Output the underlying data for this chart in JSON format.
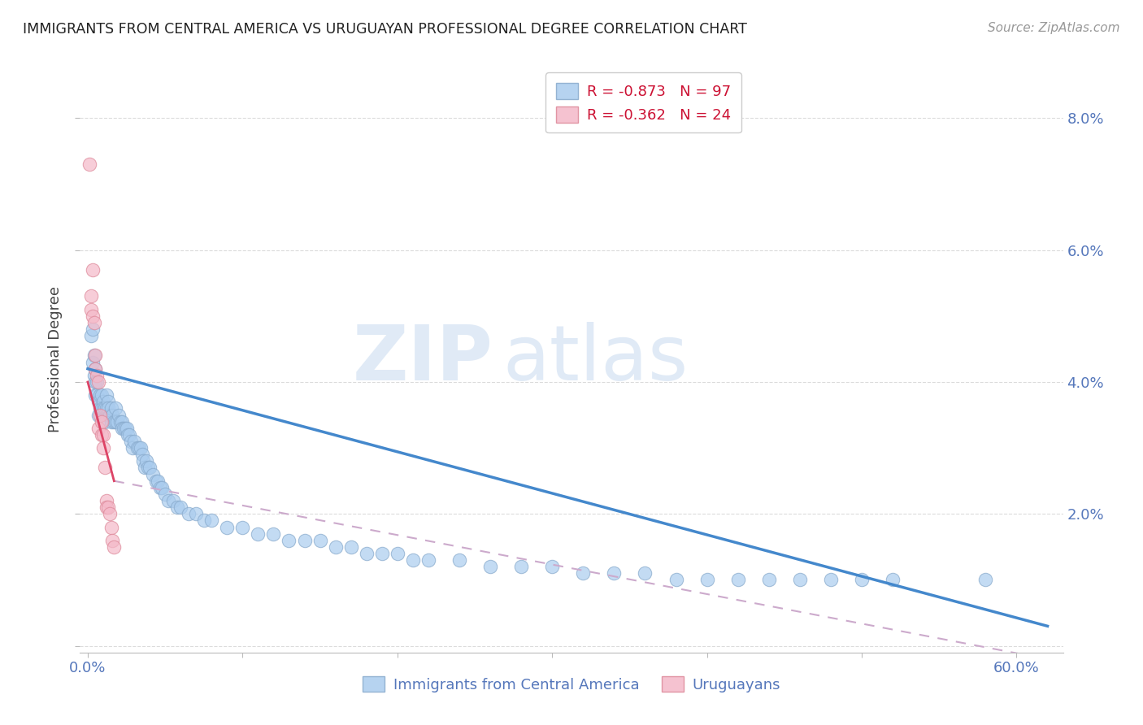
{
  "title": "IMMIGRANTS FROM CENTRAL AMERICA VS URUGUAYAN PROFESSIONAL DEGREE CORRELATION CHART",
  "source": "Source: ZipAtlas.com",
  "xlabel_blue": "Immigrants from Central America",
  "xlabel_pink": "Uruguayans",
  "ylabel": "Professional Degree",
  "watermark_zip": "ZIP",
  "watermark_atlas": "atlas",
  "legend_blue_r": "R = -0.873",
  "legend_blue_n": "N = 97",
  "legend_pink_r": "R = -0.362",
  "legend_pink_n": "N = 24",
  "x_ticks": [
    0.0,
    0.1,
    0.2,
    0.3,
    0.4,
    0.5,
    0.6
  ],
  "x_tick_labels": [
    "0.0%",
    "",
    "",
    "",
    "",
    "",
    "60.0%"
  ],
  "y_ticks": [
    0.0,
    0.02,
    0.04,
    0.06,
    0.08
  ],
  "y_tick_labels_right": [
    "",
    "2.0%",
    "4.0%",
    "6.0%",
    "8.0%"
  ],
  "xlim": [
    -0.005,
    0.63
  ],
  "ylim": [
    -0.001,
    0.088
  ],
  "background_color": "#ffffff",
  "grid_color": "#cccccc",
  "blue_color": "#aaccee",
  "blue_edge_color": "#88aacc",
  "pink_color": "#f4b8c8",
  "pink_edge_color": "#dd8899",
  "axis_tick_color": "#5577bb",
  "ylabel_color": "#444444",
  "title_color": "#222222",
  "source_color": "#999999",
  "blue_line_color": "#4488cc",
  "pink_line_color": "#dd4466",
  "pink_dash_color": "#ccaacc",
  "blue_dots": [
    [
      0.002,
      0.047
    ],
    [
      0.003,
      0.048
    ],
    [
      0.003,
      0.043
    ],
    [
      0.004,
      0.044
    ],
    [
      0.004,
      0.041
    ],
    [
      0.005,
      0.042
    ],
    [
      0.005,
      0.04
    ],
    [
      0.005,
      0.038
    ],
    [
      0.006,
      0.04
    ],
    [
      0.006,
      0.038
    ],
    [
      0.007,
      0.037
    ],
    [
      0.007,
      0.035
    ],
    [
      0.008,
      0.038
    ],
    [
      0.008,
      0.036
    ],
    [
      0.009,
      0.038
    ],
    [
      0.009,
      0.036
    ],
    [
      0.01,
      0.037
    ],
    [
      0.01,
      0.036
    ],
    [
      0.011,
      0.036
    ],
    [
      0.011,
      0.034
    ],
    [
      0.012,
      0.038
    ],
    [
      0.012,
      0.036
    ],
    [
      0.013,
      0.037
    ],
    [
      0.013,
      0.036
    ],
    [
      0.014,
      0.035
    ],
    [
      0.015,
      0.036
    ],
    [
      0.015,
      0.034
    ],
    [
      0.016,
      0.035
    ],
    [
      0.017,
      0.034
    ],
    [
      0.018,
      0.036
    ],
    [
      0.018,
      0.034
    ],
    [
      0.019,
      0.034
    ],
    [
      0.02,
      0.035
    ],
    [
      0.021,
      0.034
    ],
    [
      0.022,
      0.034
    ],
    [
      0.022,
      0.033
    ],
    [
      0.023,
      0.033
    ],
    [
      0.024,
      0.033
    ],
    [
      0.025,
      0.033
    ],
    [
      0.026,
      0.032
    ],
    [
      0.027,
      0.032
    ],
    [
      0.028,
      0.031
    ],
    [
      0.029,
      0.03
    ],
    [
      0.03,
      0.031
    ],
    [
      0.032,
      0.03
    ],
    [
      0.033,
      0.03
    ],
    [
      0.034,
      0.03
    ],
    [
      0.035,
      0.029
    ],
    [
      0.036,
      0.028
    ],
    [
      0.037,
      0.027
    ],
    [
      0.038,
      0.028
    ],
    [
      0.039,
      0.027
    ],
    [
      0.04,
      0.027
    ],
    [
      0.042,
      0.026
    ],
    [
      0.044,
      0.025
    ],
    [
      0.045,
      0.025
    ],
    [
      0.047,
      0.024
    ],
    [
      0.048,
      0.024
    ],
    [
      0.05,
      0.023
    ],
    [
      0.052,
      0.022
    ],
    [
      0.055,
      0.022
    ],
    [
      0.058,
      0.021
    ],
    [
      0.06,
      0.021
    ],
    [
      0.065,
      0.02
    ],
    [
      0.07,
      0.02
    ],
    [
      0.075,
      0.019
    ],
    [
      0.08,
      0.019
    ],
    [
      0.09,
      0.018
    ],
    [
      0.1,
      0.018
    ],
    [
      0.11,
      0.017
    ],
    [
      0.12,
      0.017
    ],
    [
      0.13,
      0.016
    ],
    [
      0.14,
      0.016
    ],
    [
      0.15,
      0.016
    ],
    [
      0.16,
      0.015
    ],
    [
      0.17,
      0.015
    ],
    [
      0.18,
      0.014
    ],
    [
      0.19,
      0.014
    ],
    [
      0.2,
      0.014
    ],
    [
      0.21,
      0.013
    ],
    [
      0.22,
      0.013
    ],
    [
      0.24,
      0.013
    ],
    [
      0.26,
      0.012
    ],
    [
      0.28,
      0.012
    ],
    [
      0.3,
      0.012
    ],
    [
      0.32,
      0.011
    ],
    [
      0.34,
      0.011
    ],
    [
      0.36,
      0.011
    ],
    [
      0.38,
      0.01
    ],
    [
      0.4,
      0.01
    ],
    [
      0.42,
      0.01
    ],
    [
      0.44,
      0.01
    ],
    [
      0.46,
      0.01
    ],
    [
      0.48,
      0.01
    ],
    [
      0.5,
      0.01
    ],
    [
      0.52,
      0.01
    ],
    [
      0.58,
      0.01
    ]
  ],
  "pink_dots": [
    [
      0.001,
      0.073
    ],
    [
      0.002,
      0.053
    ],
    [
      0.002,
      0.051
    ],
    [
      0.003,
      0.057
    ],
    [
      0.003,
      0.05
    ],
    [
      0.004,
      0.049
    ],
    [
      0.005,
      0.044
    ],
    [
      0.005,
      0.042
    ],
    [
      0.006,
      0.041
    ],
    [
      0.007,
      0.04
    ],
    [
      0.007,
      0.033
    ],
    [
      0.008,
      0.035
    ],
    [
      0.009,
      0.034
    ],
    [
      0.009,
      0.032
    ],
    [
      0.01,
      0.032
    ],
    [
      0.01,
      0.03
    ],
    [
      0.011,
      0.027
    ],
    [
      0.012,
      0.022
    ],
    [
      0.012,
      0.021
    ],
    [
      0.013,
      0.021
    ],
    [
      0.014,
      0.02
    ],
    [
      0.015,
      0.018
    ],
    [
      0.016,
      0.016
    ],
    [
      0.017,
      0.015
    ]
  ],
  "blue_line_x": [
    0.0,
    0.62
  ],
  "blue_line_y": [
    0.042,
    0.003
  ],
  "pink_line_x": [
    0.0,
    0.017
  ],
  "pink_line_y": [
    0.04,
    0.025
  ],
  "pink_dashed_line_x": [
    0.017,
    0.62
  ],
  "pink_dashed_line_y": [
    0.025,
    -0.002
  ]
}
